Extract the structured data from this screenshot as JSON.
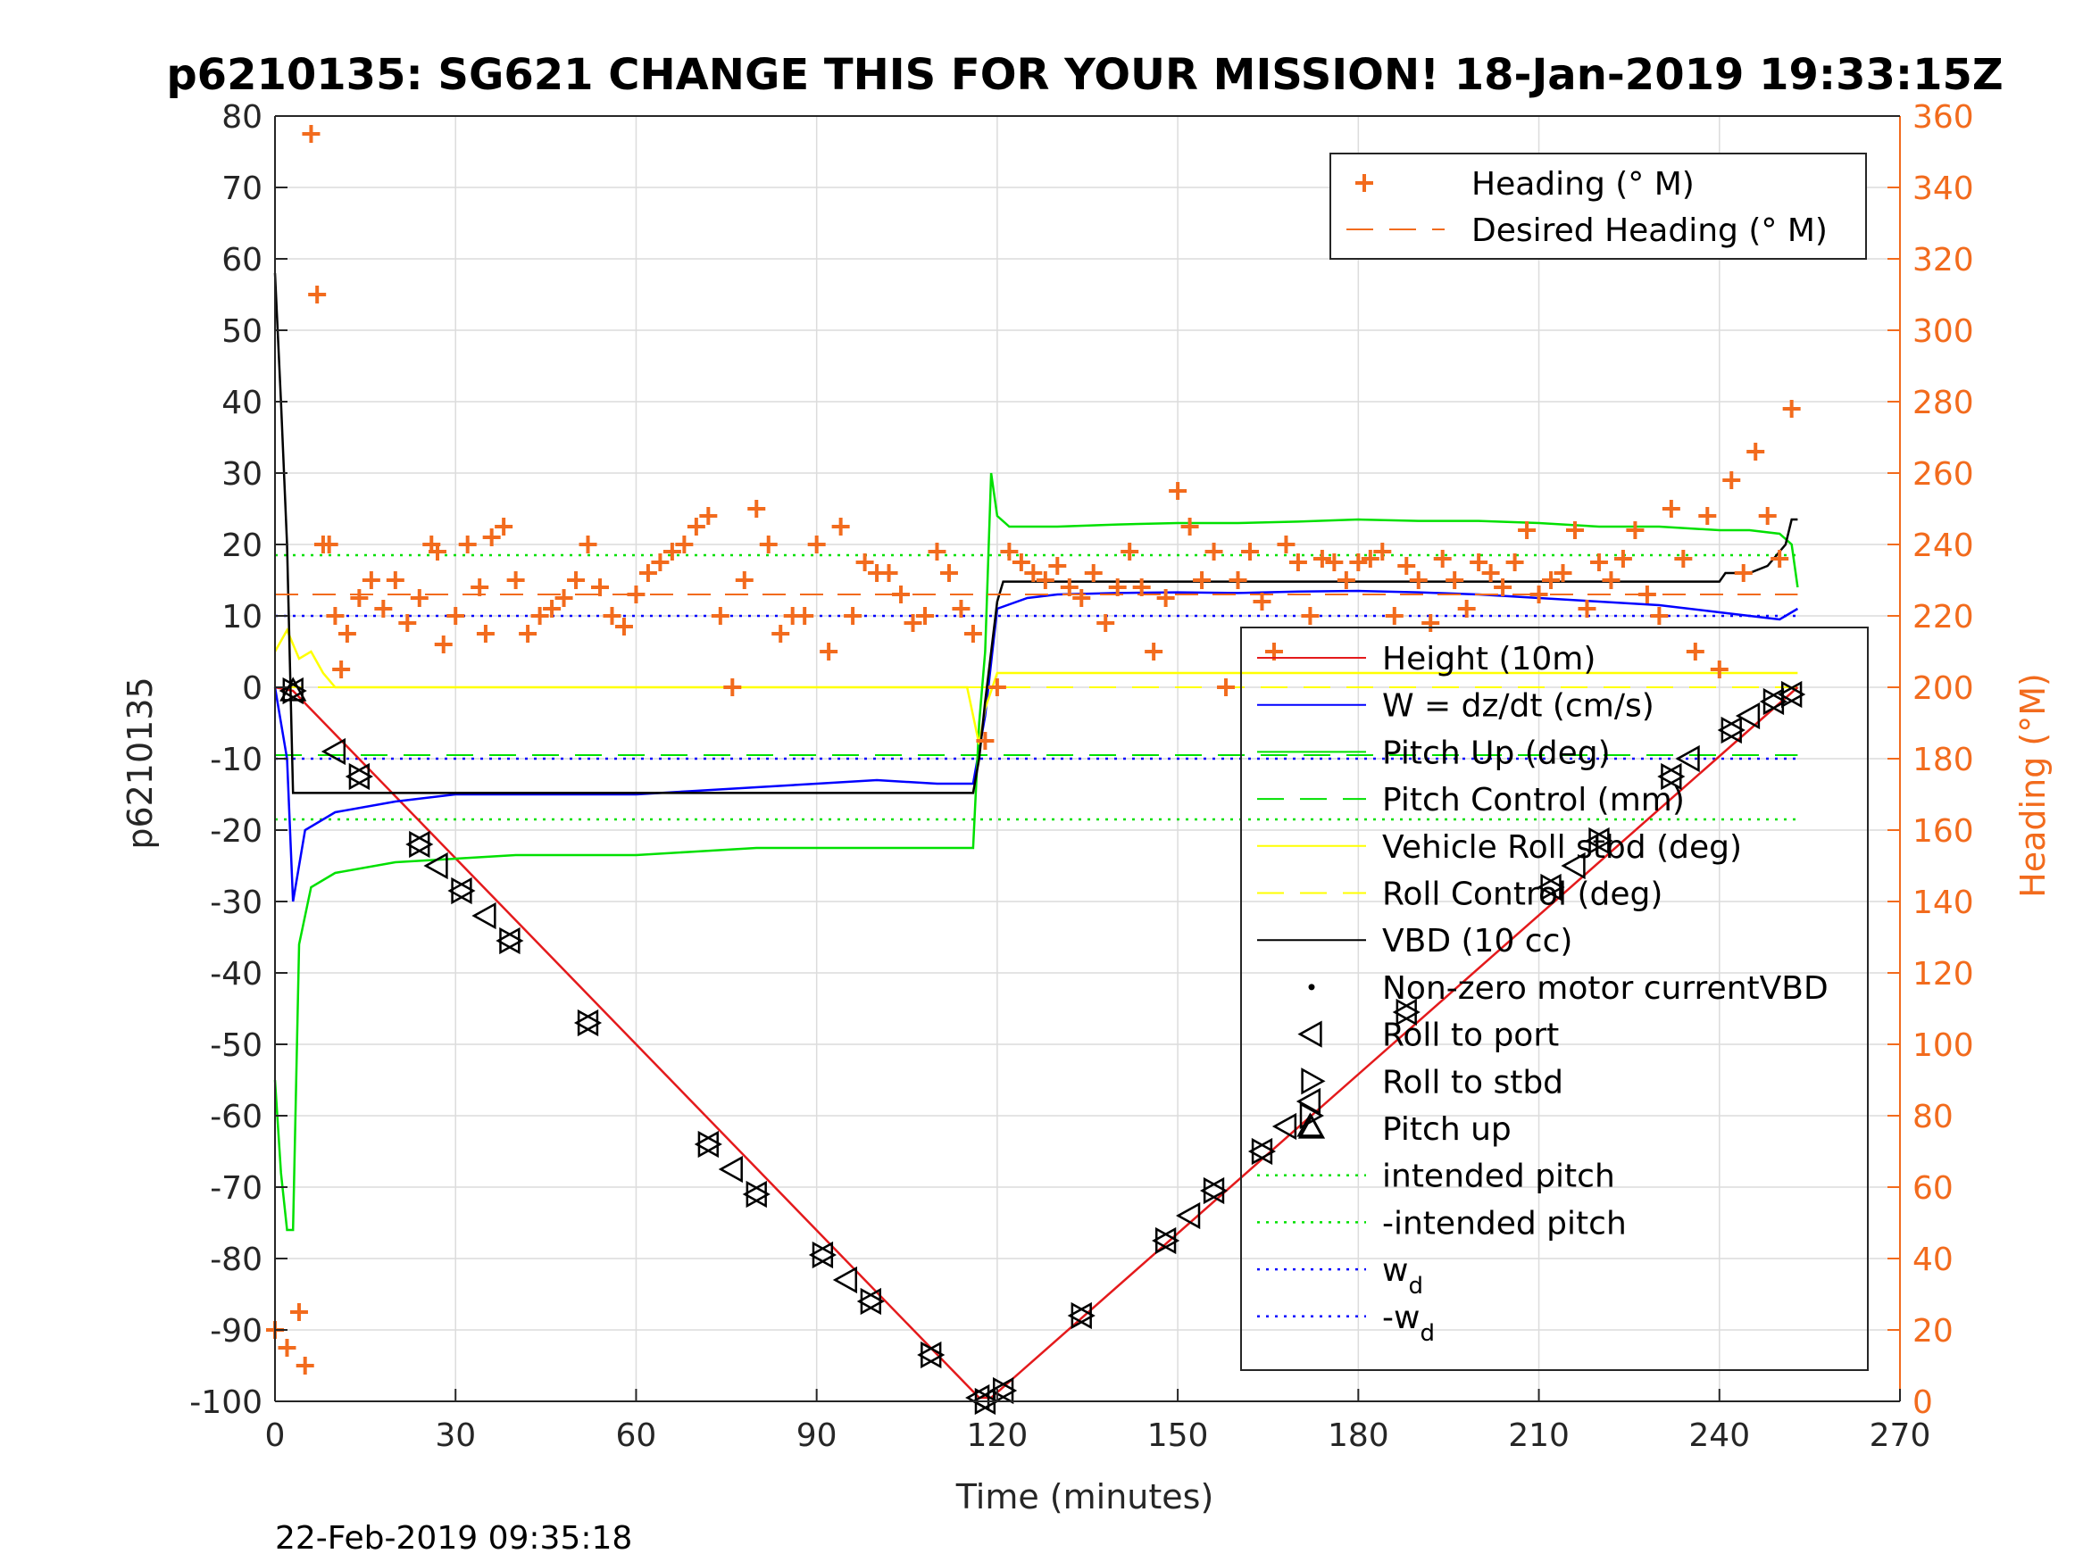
{
  "chart_data": {
    "type": "line",
    "title": "p6210135: SG621 CHANGE THIS FOR YOUR MISSION! 18-Jan-2019 19:33:15Z",
    "xlabel": "Time (minutes)",
    "ylabel": "p6210135",
    "ylabel_right": "Heading (°M)",
    "xlim": [
      0,
      270
    ],
    "ylim": [
      -100,
      80
    ],
    "ylim_right": [
      0,
      360
    ],
    "x_ticks": [
      "0",
      "30",
      "60",
      "90",
      "120",
      "150",
      "180",
      "210",
      "240",
      "270"
    ],
    "y_ticks": [
      "80",
      "70",
      "60",
      "50",
      "40",
      "30",
      "20",
      "10",
      "0",
      "-10",
      "-20",
      "-30",
      "-40",
      "-50",
      "-60",
      "-70",
      "-80",
      "-90",
      "-100"
    ],
    "y_ticks_right": [
      "360",
      "340",
      "320",
      "300",
      "280",
      "260",
      "240",
      "220",
      "200",
      "180",
      "160",
      "140",
      "120",
      "100",
      "80",
      "60",
      "40",
      "20",
      "0"
    ],
    "grid": true,
    "timestamp": "22-Feb-2019 09:35:18",
    "colors": {
      "heading": "#f26b1d",
      "height": "#e41a1c",
      "w": "#0000ff",
      "pitch": "#00e000",
      "roll": "#ffff00",
      "vbd": "#000000",
      "axis_right": "#f26b1d"
    },
    "legend_heading": [
      "Heading (° M)",
      "Desired Heading (° M)"
    ],
    "legend_main": [
      "Height (10m)",
      "W = dz/dt (cm/s)",
      "Pitch Up (deg)",
      "Pitch Control (mm)",
      "Vehicle Roll stbd (deg)",
      "Roll Control (deg)",
      "VBD (10 cc)",
      "Non-zero motor currentVBD",
      "Roll to port",
      "Roll to stbd",
      "Pitch up",
      "intended pitch",
      "-intended pitch",
      "w",
      "-w"
    ],
    "legend_subscript": "d",
    "series": [
      {
        "name": "Height (10m)",
        "x": [
          0,
          3,
          117,
          119,
          253
        ],
        "y": [
          0,
          -0.5,
          -99.5,
          -99.5,
          0
        ]
      },
      {
        "name": "W = dz/dt (cm/s)",
        "x": [
          0,
          2,
          3,
          5,
          10,
          20,
          30,
          40,
          50,
          60,
          70,
          80,
          90,
          100,
          110,
          116,
          118,
          120,
          125,
          130,
          140,
          150,
          160,
          170,
          180,
          190,
          200,
          210,
          220,
          230,
          240,
          245,
          250,
          253
        ],
        "y": [
          0,
          -10,
          -30,
          -20,
          -17.5,
          -16,
          -15,
          -15,
          -15,
          -15,
          -14.5,
          -14,
          -13.5,
          -13,
          -13.5,
          -13.5,
          -4,
          11,
          12.5,
          13,
          13.2,
          13.3,
          13.2,
          13.4,
          13.5,
          13.3,
          13,
          12.5,
          12,
          11.5,
          10.5,
          10,
          9.5,
          11
        ]
      },
      {
        "name": "Pitch Up (deg)",
        "x": [
          0,
          1,
          2,
          3,
          4,
          6,
          10,
          20,
          30,
          40,
          50,
          60,
          70,
          80,
          90,
          100,
          110,
          116,
          117,
          118,
          119,
          120,
          122,
          125,
          130,
          140,
          150,
          160,
          170,
          180,
          190,
          200,
          210,
          220,
          230,
          240,
          245,
          250,
          252,
          253
        ],
        "y": [
          -55,
          -68,
          -76,
          -76,
          -36,
          -28,
          -26,
          -24.5,
          -24,
          -23.5,
          -23.5,
          -23.5,
          -23,
          -22.5,
          -22.5,
          -22.5,
          -22.5,
          -22.5,
          -5,
          5,
          30,
          24,
          22.5,
          22.5,
          22.5,
          22.8,
          23,
          23,
          23.2,
          23.5,
          23.3,
          23.3,
          23,
          22.5,
          22.5,
          22,
          22,
          21.5,
          20,
          14
        ]
      },
      {
        "name": "Vehicle Roll stbd (deg)",
        "x": [
          0,
          2,
          4,
          6,
          8,
          10,
          20,
          30,
          40,
          50,
          60,
          70,
          80,
          90,
          100,
          110,
          115,
          117,
          118,
          120,
          125,
          130,
          140,
          150,
          160,
          170,
          180,
          190,
          200,
          210,
          220,
          230,
          240,
          245,
          250,
          253
        ],
        "y": [
          5,
          8,
          4,
          5,
          2,
          0,
          0,
          0,
          0,
          0,
          0,
          0,
          0,
          0,
          0,
          0,
          0,
          -8,
          -3,
          2,
          2,
          2,
          2,
          2,
          2,
          2,
          2,
          2,
          2,
          2,
          2,
          2,
          2,
          2,
          2,
          2
        ]
      },
      {
        "name": "VBD (10 cc)",
        "x": [
          0,
          1,
          2,
          3,
          10,
          20,
          116,
          117,
          118,
          120,
          121,
          130,
          240,
          241,
          245,
          248,
          250,
          251,
          252,
          253
        ],
        "y": [
          58,
          40,
          20,
          -14.8,
          -14.8,
          -14.8,
          -14.8,
          -10,
          -2,
          12,
          14.8,
          14.8,
          14.8,
          16,
          16,
          17,
          19,
          20,
          23.5,
          23.5
        ]
      },
      {
        "name": "Heading (° M)",
        "axis": "right",
        "x": [
          0,
          2,
          4,
          5,
          6,
          7,
          8,
          9,
          10,
          11,
          12,
          14,
          16,
          18,
          20,
          22,
          24,
          26,
          27,
          28,
          30,
          32,
          34,
          35,
          36,
          38,
          40,
          42,
          44,
          46,
          48,
          50,
          52,
          54,
          56,
          58,
          60,
          62,
          64,
          66,
          68,
          70,
          72,
          74,
          76,
          78,
          80,
          82,
          84,
          86,
          88,
          90,
          92,
          94,
          96,
          98,
          100,
          102,
          104,
          106,
          108,
          110,
          112,
          114,
          116,
          118,
          120,
          122,
          124,
          126,
          128,
          130,
          132,
          134,
          136,
          138,
          140,
          142,
          144,
          146,
          148,
          150,
          152,
          154,
          156,
          158,
          160,
          162,
          164,
          166,
          168,
          170,
          172,
          174,
          176,
          178,
          180,
          182,
          184,
          186,
          188,
          190,
          192,
          194,
          196,
          198,
          200,
          202,
          204,
          206,
          208,
          210,
          212,
          214,
          216,
          218,
          220,
          222,
          224,
          226,
          228,
          230,
          232,
          234,
          236,
          238,
          240,
          242,
          244,
          246,
          248,
          250,
          252
        ],
        "y": [
          20,
          15,
          25,
          10,
          355,
          310,
          240,
          240,
          220,
          205,
          215,
          225,
          230,
          222,
          230,
          218,
          225,
          240,
          238,
          212,
          220,
          240,
          228,
          215,
          242,
          245,
          230,
          215,
          220,
          222,
          225,
          230,
          240,
          228,
          220,
          217,
          226,
          232,
          235,
          238,
          240,
          245,
          248,
          220,
          200,
          230,
          250,
          240,
          215,
          220,
          220,
          240,
          210,
          245,
          220,
          235,
          232,
          232,
          226,
          218,
          220,
          238,
          232,
          222,
          215,
          185,
          200,
          238,
          235,
          232,
          230,
          234,
          228,
          225,
          232,
          218,
          228,
          238,
          228,
          210,
          225,
          255,
          245,
          230,
          238,
          200,
          230,
          238,
          224,
          210,
          240,
          235,
          220,
          236,
          235,
          230,
          235,
          236,
          238,
          220,
          234,
          230,
          218,
          236,
          230,
          222,
          235,
          232,
          228,
          235,
          244,
          226,
          230,
          232,
          244,
          222,
          235,
          230,
          236,
          244,
          226,
          220,
          250,
          236,
          210,
          248,
          205,
          258,
          232,
          266,
          248,
          236,
          278
        ]
      },
      {
        "name": "Desired Heading (° M)",
        "axis": "right",
        "x": [
          0,
          253
        ],
        "y": [
          226,
          226
        ]
      }
    ],
    "markers": {
      "roll_to_port": [
        [
          3,
          -0.5
        ],
        [
          10,
          -9
        ],
        [
          14,
          -12.5
        ],
        [
          24,
          -22
        ],
        [
          27,
          -25
        ],
        [
          31,
          -28.5
        ],
        [
          35,
          -32
        ],
        [
          39,
          -35.5
        ],
        [
          52,
          -47
        ],
        [
          72,
          -64
        ],
        [
          76,
          -67.5
        ],
        [
          80,
          -71
        ],
        [
          91,
          -79.5
        ],
        [
          95,
          -83
        ],
        [
          99,
          -86
        ],
        [
          109,
          -93.5
        ],
        [
          117,
          -99.5
        ],
        [
          118,
          -100
        ],
        [
          121,
          -98.5
        ],
        [
          134,
          -88
        ],
        [
          148,
          -77.5
        ],
        [
          152,
          -74
        ],
        [
          156,
          -70.5
        ],
        [
          164,
          -65
        ],
        [
          168,
          -61.5
        ],
        [
          172,
          -58
        ],
        [
          188,
          -45.5
        ],
        [
          212,
          -28
        ],
        [
          216,
          -25
        ],
        [
          220,
          -21.5
        ],
        [
          232,
          -12.5
        ],
        [
          235,
          -10
        ],
        [
          242,
          -6
        ],
        [
          245,
          -4
        ],
        [
          249,
          -2
        ],
        [
          252,
          -1
        ]
      ],
      "roll_to_stbd": [
        [
          3,
          -0.5
        ],
        [
          14,
          -12.5
        ],
        [
          24,
          -22
        ],
        [
          31,
          -28.5
        ],
        [
          39,
          -35.5
        ],
        [
          52,
          -47
        ],
        [
          72,
          -64
        ],
        [
          80,
          -71
        ],
        [
          91,
          -79.5
        ],
        [
          99,
          -86
        ],
        [
          109,
          -93.5
        ],
        [
          118,
          -100
        ],
        [
          121,
          -98.5
        ],
        [
          134,
          -88
        ],
        [
          148,
          -77.5
        ],
        [
          156,
          -70.5
        ],
        [
          164,
          -65
        ],
        [
          172,
          -60
        ],
        [
          188,
          -45.5
        ],
        [
          212,
          -28
        ],
        [
          220,
          -21.5
        ],
        [
          232,
          -12.5
        ],
        [
          242,
          -6
        ],
        [
          249,
          -2
        ],
        [
          252,
          -1
        ]
      ],
      "pitch_up": [
        [
          3,
          -0.5
        ],
        [
          172,
          -61.5
        ]
      ]
    },
    "reference_lines": {
      "intended_pitch": 18.5,
      "neg_intended_pitch": -18.5,
      "w_d": 10,
      "neg_w_d": -10,
      "pitch_control": -9.5,
      "roll_control": 0,
      "x_extent": [
        0,
        253
      ]
    }
  }
}
